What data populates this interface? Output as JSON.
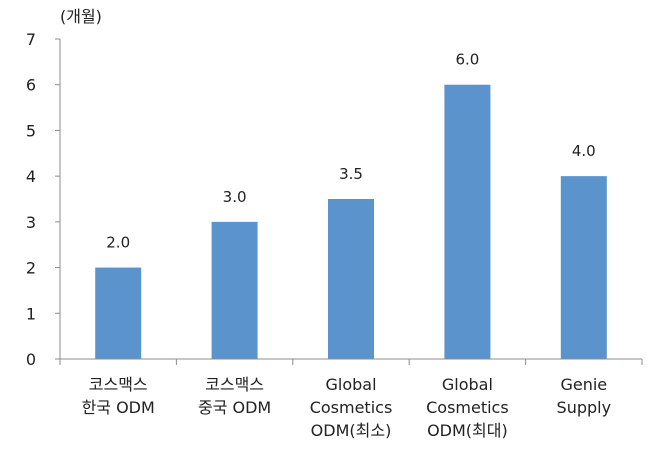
{
  "chart_data": {
    "type": "bar",
    "unit_label": "(개월)",
    "categories": [
      [
        "코스맥스",
        "한국 ODM"
      ],
      [
        "코스맥스",
        "중국 ODM"
      ],
      [
        "Global",
        "Cosmetics",
        "ODM(최소)"
      ],
      [
        "Global",
        "Cosmetics",
        "ODM(최대)"
      ],
      [
        "Genie",
        "Supply"
      ]
    ],
    "values": [
      2.0,
      3.0,
      3.5,
      6.0,
      4.0
    ],
    "data_labels": [
      "2.0",
      "3.0",
      "3.5",
      "6.0",
      "4.0"
    ],
    "ylim": [
      0,
      7
    ],
    "yticks": [
      "0",
      "1",
      "2",
      "3",
      "4",
      "5",
      "6",
      "7"
    ],
    "bar_color": "#5b93cc",
    "grid": false,
    "legend": "none"
  }
}
